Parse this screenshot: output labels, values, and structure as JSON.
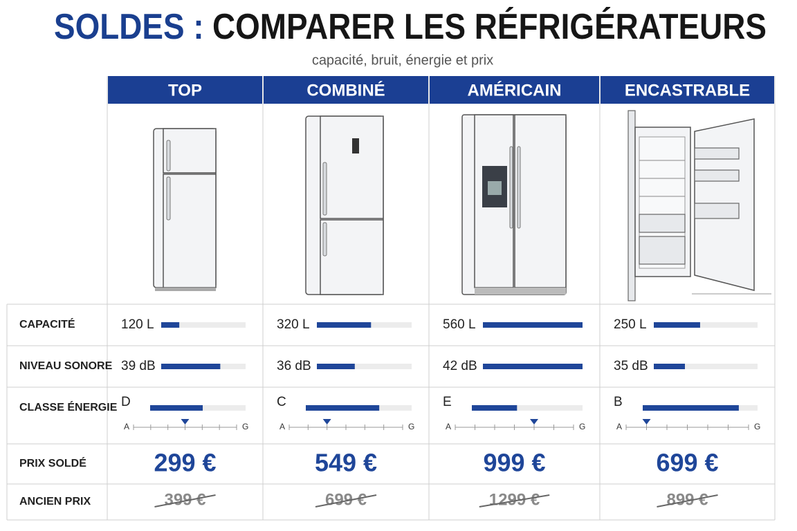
{
  "header": {
    "title_highlight": "SOLDES :",
    "title": "COMPARER LES RÉFRIGÉRATEURS",
    "subtitle": "capacité, bruit, énergie et prix"
  },
  "table": {
    "columns": [
      "TOP",
      "COMBINÉ",
      "AMÉRICAIN",
      "ENCASTRABLE"
    ],
    "row_labels": [
      "CAPACITÉ",
      "NIVEAU SONORE",
      "CLASSE ÉNERGIE",
      "PRIX SOLDÉ",
      "ANCIEN PRIX"
    ],
    "capacity": [
      {
        "value": 120,
        "label": "120 L"
      },
      {
        "value": 320,
        "label": "320 L"
      },
      {
        "value": 560,
        "label": "560 L"
      },
      {
        "value": 250,
        "label": "250 L"
      }
    ],
    "noise": [
      {
        "value": 39,
        "label": "39 dB"
      },
      {
        "value": 36,
        "label": "36 dB"
      },
      {
        "value": 42,
        "label": "42 dB"
      },
      {
        "value": 35,
        "label": "35 dB"
      }
    ],
    "energy": [
      "D",
      "C",
      "E",
      "B"
    ],
    "energy_scale": [
      "A",
      "G"
    ],
    "sale_price": [
      "299 €",
      "549 €",
      "999 €",
      "699 €"
    ],
    "old_price": [
      "399 €",
      "699 €",
      "1299 €",
      "899 €"
    ]
  }
}
